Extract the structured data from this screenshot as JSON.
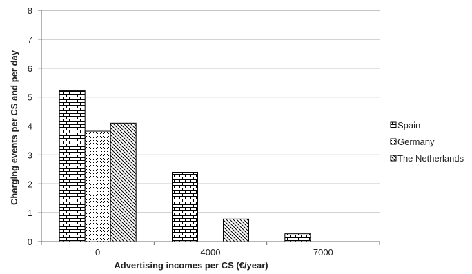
{
  "chart_data": {
    "type": "bar",
    "title": "",
    "xlabel": "Advertising incomes per CS (€/year)",
    "ylabel": "Charging events per CS and per day",
    "categories": [
      "0",
      "4000",
      "7000"
    ],
    "ylim": [
      0,
      8
    ],
    "yticks": [
      "0",
      "1",
      "2",
      "3",
      "4",
      "5",
      "6",
      "7",
      "8"
    ],
    "grid": "horizontal",
    "legend_position": "right",
    "series": [
      {
        "name": "Spain",
        "values": [
          5.22,
          2.4,
          0.27
        ],
        "pattern": "brick",
        "color": "#000000"
      },
      {
        "name": "Germany",
        "values": [
          3.82,
          null,
          null
        ],
        "pattern": "dots",
        "color": "#000000"
      },
      {
        "name": "The Netherlands",
        "values": [
          4.1,
          0.78,
          null
        ],
        "pattern": "diagonal",
        "color": "#000000"
      }
    ]
  }
}
